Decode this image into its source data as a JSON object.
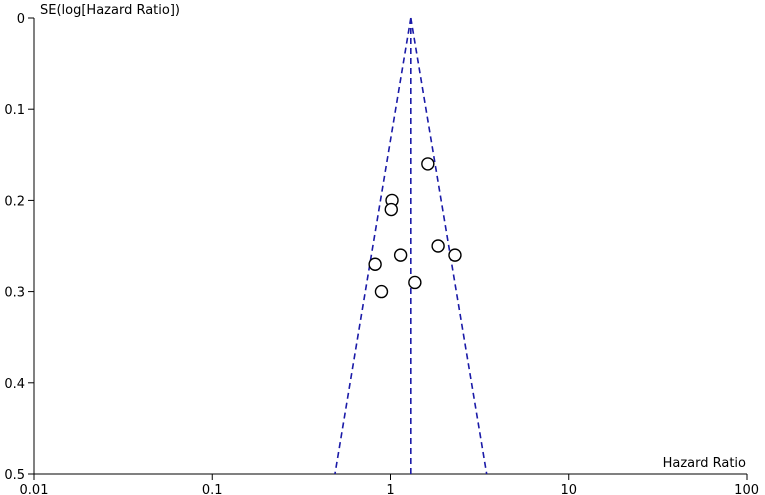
{
  "chart_data": {
    "type": "scatter",
    "title": "",
    "xlabel": "Hazard Ratio",
    "ylabel": "SE(log[Hazard Ratio])",
    "x_scale": "log",
    "xlim": [
      0.01,
      100
    ],
    "ylim": [
      0,
      0.5
    ],
    "y_reversed": true,
    "x_ticks": [
      0.01,
      0.1,
      1,
      10,
      100
    ],
    "x_tick_labels": [
      "0.01",
      "0.1",
      "1",
      "10",
      "100"
    ],
    "y_ticks": [
      0,
      0.1,
      0.2,
      0.3,
      0.4,
      0.5
    ],
    "y_tick_labels": [
      "0",
      "0.1",
      "0.2",
      "0.3",
      "0.4",
      "0.5"
    ],
    "grid": false,
    "points": [
      {
        "x": 1.62,
        "y": 0.16
      },
      {
        "x": 1.02,
        "y": 0.2
      },
      {
        "x": 1.01,
        "y": 0.21
      },
      {
        "x": 1.85,
        "y": 0.25
      },
      {
        "x": 1.14,
        "y": 0.26
      },
      {
        "x": 2.3,
        "y": 0.26
      },
      {
        "x": 0.82,
        "y": 0.27
      },
      {
        "x": 1.37,
        "y": 0.29
      },
      {
        "x": 0.89,
        "y": 0.3
      }
    ],
    "funnel": {
      "pooled_estimate": 1.3,
      "ci_multiplier": 1.96,
      "line_color": "#1a1aa8",
      "line_style": "dashed"
    },
    "marker": {
      "shape": "open-circle",
      "color": "#000000"
    }
  }
}
